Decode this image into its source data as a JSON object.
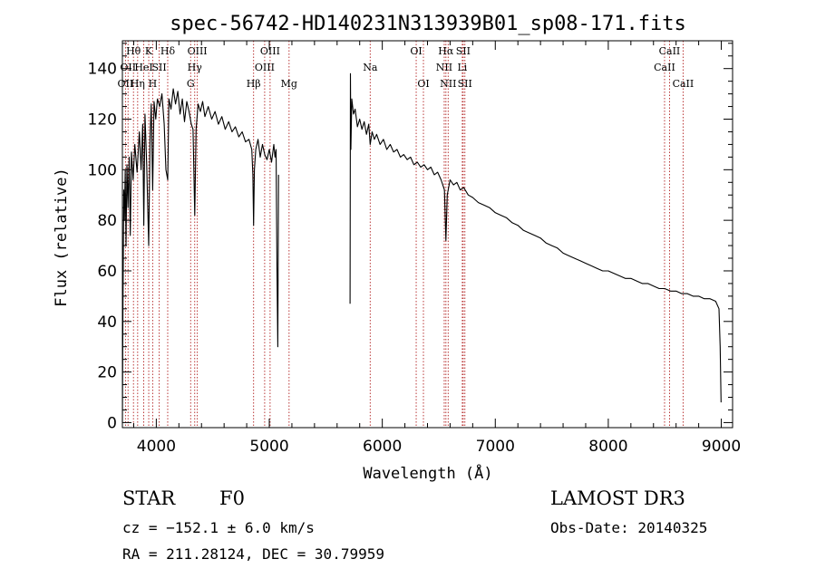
{
  "chart_data": {
    "type": "line",
    "title": "spec-56742-HD140231N313939B01_sp08-171.fits",
    "xlabel": "Wavelength (Å)",
    "ylabel": "Flux (relative)",
    "xlim": [
      3700,
      9100
    ],
    "ylim": [
      -2,
      151
    ],
    "x_ticks": [
      4000,
      5000,
      6000,
      7000,
      8000,
      9000
    ],
    "y_ticks": [
      0,
      20,
      40,
      60,
      80,
      100,
      120,
      140
    ],
    "x_tick_labels": [
      "4000",
      "5000",
      "6000",
      "7000",
      "8000",
      "9000"
    ],
    "y_tick_labels": [
      "0",
      "20",
      "40",
      "60",
      "80",
      "100",
      "120",
      "140"
    ],
    "grid": false,
    "line_color": "#000000",
    "marker_color": "#b22222",
    "series": [
      {
        "name": "flux",
        "segments": [
          [
            [
              3700,
              0
            ],
            [
              3705,
              45
            ],
            [
              3712,
              92
            ],
            [
              3718,
              80
            ],
            [
              3725,
              100
            ],
            [
              3732,
              70
            ],
            [
              3740,
              102
            ],
            [
              3750,
              85
            ],
            [
              3760,
              105
            ],
            [
              3770,
              74
            ],
            [
              3780,
              107
            ],
            [
              3795,
              96
            ],
            [
              3810,
              110
            ],
            [
              3830,
              99
            ],
            [
              3850,
              115
            ],
            [
              3865,
              100
            ],
            [
              3880,
              118
            ],
            [
              3889,
              78
            ],
            [
              3900,
              122
            ],
            [
              3915,
              102
            ],
            [
              3933,
              70
            ],
            [
              3945,
              112
            ],
            [
              3955,
              126
            ],
            [
              3968,
              92
            ],
            [
              3980,
              127
            ],
            [
              3995,
              120
            ],
            [
              4010,
              128
            ],
            [
              4030,
              125
            ],
            [
              4050,
              130
            ],
            [
              4070,
              118
            ],
            [
              4085,
              100
            ],
            [
              4101,
              96
            ],
            [
              4112,
              128
            ],
            [
              4130,
              124
            ],
            [
              4150,
              132
            ],
            [
              4170,
              126
            ],
            [
              4190,
              131
            ],
            [
              4210,
              122
            ],
            [
              4230,
              128
            ],
            [
              4250,
              119
            ],
            [
              4270,
              127
            ],
            [
              4290,
              123
            ],
            [
              4310,
              118
            ],
            [
              4325,
              116
            ],
            [
              4340,
              82
            ],
            [
              4352,
              116
            ],
            [
              4370,
              126
            ],
            [
              4390,
              123
            ],
            [
              4410,
              127
            ],
            [
              4430,
              121
            ],
            [
              4460,
              125
            ],
            [
              4490,
              120
            ],
            [
              4520,
              123
            ],
            [
              4550,
              118
            ],
            [
              4580,
              121
            ],
            [
              4610,
              116
            ],
            [
              4640,
              119
            ],
            [
              4670,
              115
            ],
            [
              4700,
              117
            ],
            [
              4730,
              113
            ],
            [
              4760,
              115
            ],
            [
              4790,
              111
            ],
            [
              4820,
              112
            ],
            [
              4845,
              108
            ],
            [
              4855,
              98
            ],
            [
              4861,
              78
            ],
            [
              4868,
              100
            ],
            [
              4880,
              108
            ],
            [
              4900,
              112
            ],
            [
              4920,
              105
            ],
            [
              4940,
              110
            ],
            [
              4960,
              106
            ],
            [
              4980,
              104
            ],
            [
              5000,
              108
            ],
            [
              5020,
              103
            ],
            [
              5040,
              110
            ],
            [
              5050,
              105
            ],
            [
              5060,
              108
            ],
            [
              5068,
              60
            ],
            [
              5075,
              30
            ],
            [
              5082,
              98
            ]
          ],
          [
            [
              5715,
              47
            ],
            [
              5718,
              138
            ],
            [
              5722,
              108
            ],
            [
              5730,
              128
            ],
            [
              5745,
              122
            ],
            [
              5760,
              124
            ],
            [
              5780,
              117
            ],
            [
              5800,
              120
            ],
            [
              5820,
              116
            ],
            [
              5840,
              119
            ],
            [
              5860,
              114
            ],
            [
              5880,
              118
            ],
            [
              5893,
              110
            ],
            [
              5910,
              115
            ],
            [
              5930,
              112
            ],
            [
              5950,
              114
            ],
            [
              5980,
              110
            ],
            [
              6010,
              112
            ],
            [
              6040,
              108
            ],
            [
              6070,
              110
            ],
            [
              6100,
              107
            ],
            [
              6130,
              108
            ],
            [
              6160,
              105
            ],
            [
              6190,
              106
            ],
            [
              6220,
              104
            ],
            [
              6250,
              105
            ],
            [
              6280,
              102
            ],
            [
              6310,
              103
            ],
            [
              6340,
              101
            ],
            [
              6370,
              102
            ],
            [
              6400,
              100
            ],
            [
              6430,
              101
            ],
            [
              6460,
              98
            ],
            [
              6490,
              99
            ],
            [
              6520,
              96
            ],
            [
              6550,
              92
            ],
            [
              6563,
              72
            ],
            [
              6575,
              90
            ],
            [
              6600,
              96
            ],
            [
              6630,
              94
            ],
            [
              6660,
              95
            ],
            [
              6690,
              92
            ],
            [
              6720,
              93
            ],
            [
              6760,
              90
            ],
            [
              6800,
              89
            ],
            [
              6850,
              87
            ],
            [
              6900,
              86
            ],
            [
              6950,
              85
            ],
            [
              7000,
              83
            ],
            [
              7050,
              82
            ],
            [
              7100,
              81
            ],
            [
              7150,
              79
            ],
            [
              7200,
              78
            ],
            [
              7250,
              76
            ],
            [
              7300,
              75
            ],
            [
              7350,
              74
            ],
            [
              7400,
              73
            ],
            [
              7450,
              71
            ],
            [
              7500,
              70
            ],
            [
              7550,
              69
            ],
            [
              7600,
              67
            ],
            [
              7650,
              66
            ],
            [
              7700,
              65
            ],
            [
              7750,
              64
            ],
            [
              7800,
              63
            ],
            [
              7850,
              62
            ],
            [
              7900,
              61
            ],
            [
              7950,
              60
            ],
            [
              8000,
              60
            ],
            [
              8050,
              59
            ],
            [
              8100,
              58
            ],
            [
              8150,
              57
            ],
            [
              8200,
              57
            ],
            [
              8250,
              56
            ],
            [
              8300,
              55
            ],
            [
              8350,
              55
            ],
            [
              8400,
              54
            ],
            [
              8450,
              53
            ],
            [
              8500,
              53
            ],
            [
              8550,
              52
            ],
            [
              8600,
              52
            ],
            [
              8650,
              51
            ],
            [
              8700,
              51
            ],
            [
              8750,
              50
            ],
            [
              8800,
              50
            ],
            [
              8850,
              49
            ],
            [
              8900,
              49
            ],
            [
              8950,
              48
            ],
            [
              8980,
              45
            ],
            [
              8990,
              30
            ],
            [
              8998,
              8
            ]
          ]
        ]
      }
    ],
    "line_markers": [
      {
        "wavelength": 3727,
        "label": "OII",
        "row": 2
      },
      {
        "wavelength": 3750,
        "label": "OII",
        "row": 1
      },
      {
        "wavelength": 3798,
        "label": "Hθ",
        "row": 0
      },
      {
        "wavelength": 3835,
        "label": "Hη",
        "row": 2
      },
      {
        "wavelength": 3889,
        "label": "HeI",
        "row": 1
      },
      {
        "wavelength": 3933,
        "label": "K",
        "row": 0
      },
      {
        "wavelength": 3968,
        "label": "H",
        "row": 2
      },
      {
        "wavelength": 4026,
        "label": "SII",
        "row": 1
      },
      {
        "wavelength": 4101,
        "label": "Hδ",
        "row": 0
      },
      {
        "wavelength": 4304,
        "label": "G",
        "row": 2
      },
      {
        "wavelength": 4340,
        "label": "Hγ",
        "row": 1
      },
      {
        "wavelength": 4363,
        "label": "OIII",
        "row": 0
      },
      {
        "wavelength": 4861,
        "label": "Hβ",
        "row": 2
      },
      {
        "wavelength": 4959,
        "label": "OIII",
        "row": 1
      },
      {
        "wavelength": 5007,
        "label": "OIII",
        "row": 0
      },
      {
        "wavelength": 5175,
        "label": "Mg",
        "row": 2
      },
      {
        "wavelength": 5893,
        "label": "Na",
        "row": 1
      },
      {
        "wavelength": 6300,
        "label": "OI",
        "row": 0
      },
      {
        "wavelength": 6364,
        "label": "OI",
        "row": 2
      },
      {
        "wavelength": 6548,
        "label": "NII",
        "row": 1
      },
      {
        "wavelength": 6563,
        "label": "Hα",
        "row": 0
      },
      {
        "wavelength": 6583,
        "label": "NII",
        "row": 2
      },
      {
        "wavelength": 6708,
        "label": "Li",
        "row": 1
      },
      {
        "wavelength": 6716,
        "label": "SII",
        "row": 0
      },
      {
        "wavelength": 6731,
        "label": "SII",
        "row": 2
      },
      {
        "wavelength": 8498,
        "label": "CaII",
        "row": 1
      },
      {
        "wavelength": 8542,
        "label": "CaII",
        "row": 0
      },
      {
        "wavelength": 8662,
        "label": "CaII",
        "row": 2
      }
    ]
  },
  "info": {
    "object_class": "STAR",
    "subclass": "F0",
    "survey": "LAMOST DR3",
    "redshift_line": "cz = −152.1 ± 6.0 km/s",
    "obs_date": "Obs-Date: 20140325",
    "coords": "RA = 211.28124, DEC =  30.79959"
  }
}
